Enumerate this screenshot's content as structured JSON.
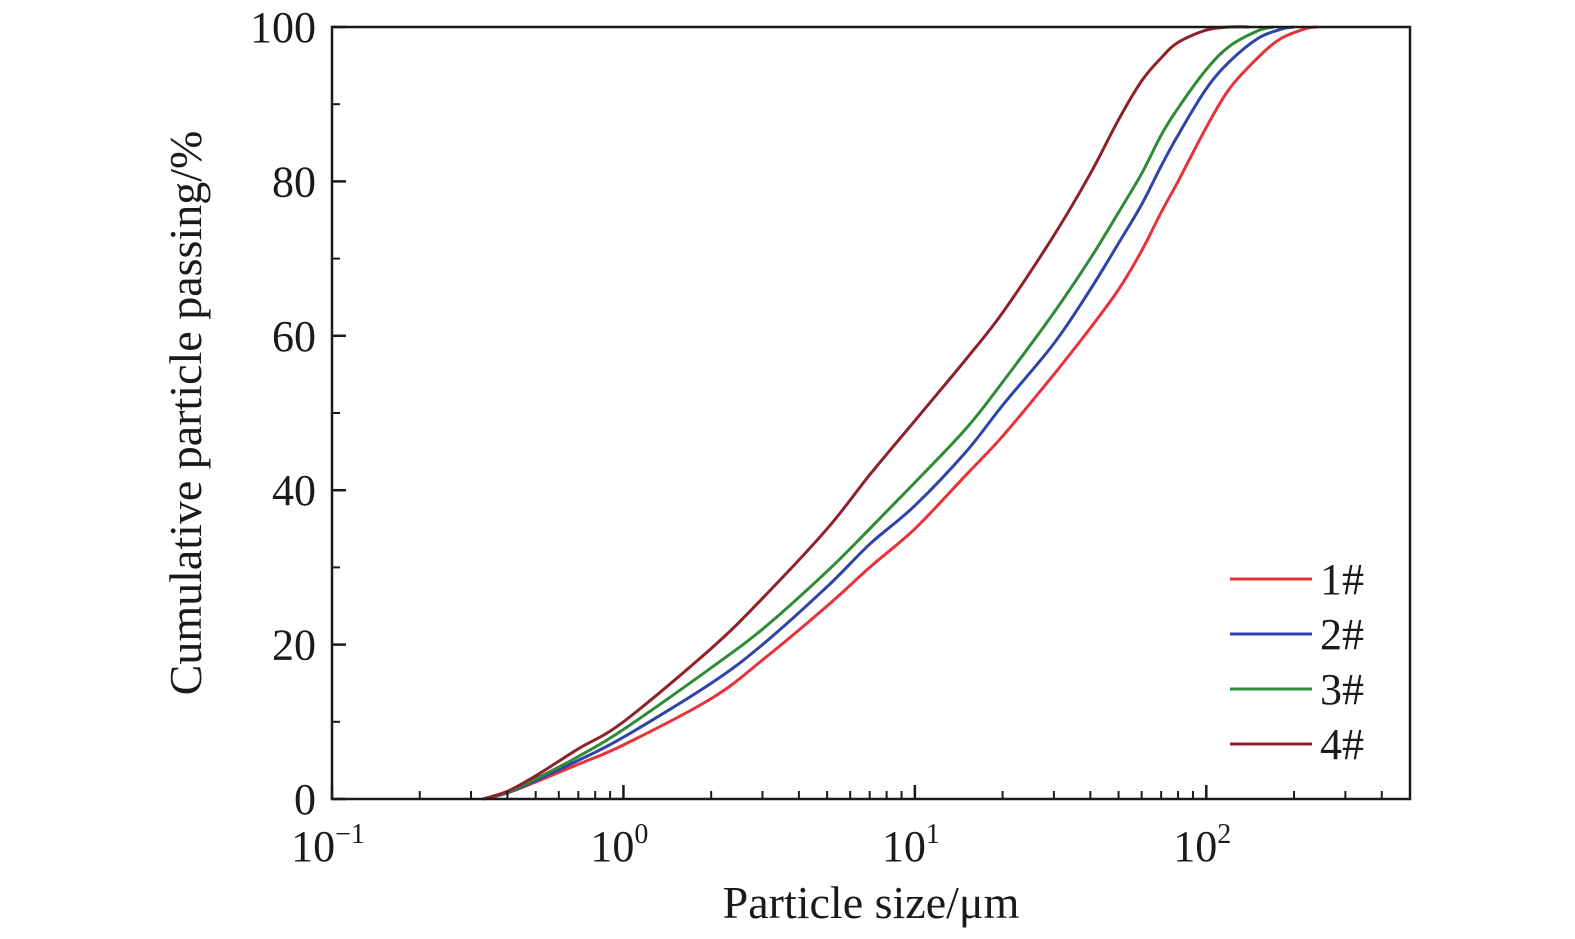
{
  "chart_data": {
    "type": "line",
    "xlabel": "Particle size/μm",
    "ylabel": "Cumulative particle passing/%",
    "x_scale": "log",
    "xlim": [
      0.1,
      500
    ],
    "ylim": [
      0,
      100
    ],
    "x_ticks": [
      {
        "value": 0.1,
        "base": "10",
        "exp": "−1"
      },
      {
        "value": 1,
        "base": "10",
        "exp": "0"
      },
      {
        "value": 10,
        "base": "10",
        "exp": "1"
      },
      {
        "value": 100,
        "base": "10",
        "exp": "2"
      }
    ],
    "y_ticks": [
      {
        "value": 0,
        "label": "0"
      },
      {
        "value": 20,
        "label": "20"
      },
      {
        "value": 40,
        "label": "40"
      },
      {
        "value": 60,
        "label": "60"
      },
      {
        "value": 80,
        "label": "80"
      },
      {
        "value": 100,
        "label": "100"
      }
    ],
    "grid": false,
    "legend_position": "bottom-right",
    "series": [
      {
        "name": "1#",
        "color": "#e8323a",
        "x": [
          0.33,
          0.4,
          0.5,
          0.7,
          1,
          2,
          3,
          5,
          7,
          10,
          15,
          20,
          30,
          40,
          50,
          60,
          70,
          80,
          100,
          120,
          150,
          180,
          220,
          240
        ],
        "y": [
          0,
          0.8,
          2.2,
          4.5,
          7,
          13,
          18,
          25,
          30,
          35,
          42,
          47,
          55,
          61,
          66,
          71,
          76,
          80,
          87,
          92,
          96,
          98.5,
          99.8,
          100
        ]
      },
      {
        "name": "2#",
        "color": "#2f44a8",
        "x": [
          0.33,
          0.4,
          0.5,
          0.7,
          1,
          2,
          3,
          5,
          7,
          10,
          15,
          20,
          30,
          40,
          50,
          60,
          70,
          80,
          100,
          120,
          150,
          180,
          200
        ],
        "y": [
          0,
          0.8,
          2.4,
          5,
          8,
          15,
          20,
          27.5,
          33,
          38,
          45,
          51,
          59,
          66,
          72,
          77,
          82,
          86,
          92,
          95.5,
          98.5,
          99.7,
          100
        ]
      },
      {
        "name": "3#",
        "color": "#2e8b36",
        "x": [
          0.33,
          0.4,
          0.5,
          0.7,
          1,
          2,
          3,
          5,
          7,
          10,
          15,
          20,
          30,
          40,
          50,
          60,
          70,
          80,
          100,
          120,
          150,
          170
        ],
        "y": [
          0,
          0.9,
          2.6,
          5.5,
          9,
          17,
          22,
          29.5,
          35,
          41,
          48,
          54,
          63,
          70,
          76,
          81,
          86,
          89.5,
          94.5,
          97.5,
          99.5,
          100
        ]
      },
      {
        "name": "4#",
        "color": "#8e2228",
        "x": [
          0.33,
          0.4,
          0.5,
          0.7,
          1,
          2,
          3,
          5,
          7,
          10,
          15,
          20,
          30,
          40,
          50,
          60,
          70,
          80,
          100,
          120,
          140
        ],
        "y": [
          0,
          1,
          3,
          6.5,
          10,
          19.5,
          26,
          35,
          42,
          49,
          57,
          63,
          73,
          81,
          88,
          93,
          96,
          98,
          99.6,
          100,
          100
        ]
      }
    ]
  }
}
